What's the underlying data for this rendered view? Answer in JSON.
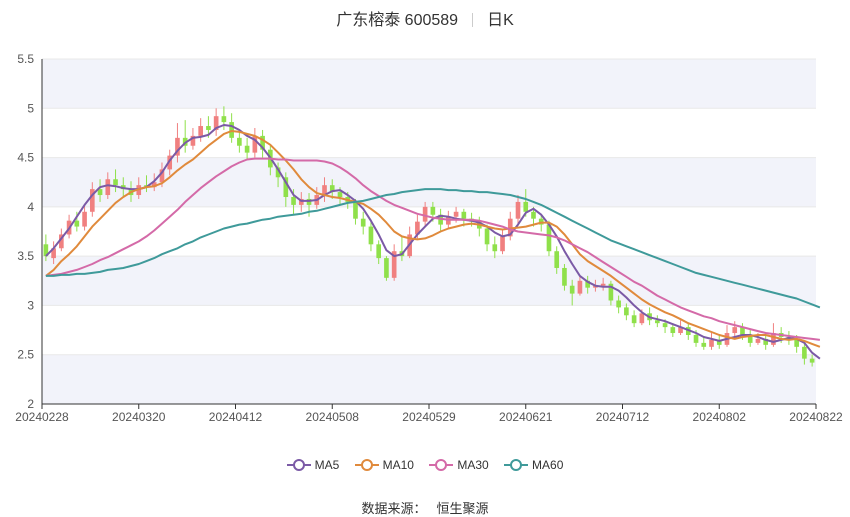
{
  "header": {
    "name": "广东榕泰 600589",
    "period": "日K"
  },
  "source": {
    "label": "数据来源：",
    "value": "恒生聚源"
  },
  "colors": {
    "up": "#f08080",
    "down": "#8fe04a",
    "ma5": "#7b5aa6",
    "ma10": "#e08a3c",
    "ma30": "#d46aa8",
    "ma60": "#3f9a9a",
    "grid": "#e8e8e8",
    "band": "#f2f3fa"
  },
  "chart_data": {
    "type": "candlestick",
    "title": "广东榕泰 600589",
    "period": "日K",
    "ylim": [
      2,
      5.5
    ],
    "yticks": [
      "2",
      "2.5",
      "3",
      "3.5",
      "4",
      "4.5",
      "5",
      "5.5"
    ],
    "xtick_labels": [
      "20240228",
      "20240320",
      "20240412",
      "20240508",
      "20240529",
      "20240621",
      "20240712",
      "20240802",
      "20240822"
    ],
    "legend_placement": "bottom-center",
    "grid": true,
    "candles": [
      [
        3.62,
        3.5,
        3.72,
        3.45
      ],
      [
        3.48,
        3.58,
        3.65,
        3.42
      ],
      [
        3.58,
        3.72,
        3.78,
        3.55
      ],
      [
        3.72,
        3.86,
        3.92,
        3.68
      ],
      [
        3.86,
        3.8,
        3.95,
        3.75
      ],
      [
        3.8,
        3.95,
        4.02,
        3.76
      ],
      [
        3.95,
        4.18,
        4.25,
        3.9
      ],
      [
        4.18,
        4.12,
        4.28,
        4.05
      ],
      [
        4.12,
        4.28,
        4.35,
        4.08
      ],
      [
        4.28,
        4.22,
        4.38,
        4.15
      ],
      [
        4.22,
        4.18,
        4.3,
        4.1
      ],
      [
        4.18,
        4.12,
        4.26,
        4.05
      ],
      [
        4.12,
        4.22,
        4.3,
        4.08
      ],
      [
        4.22,
        4.2,
        4.32,
        4.15
      ],
      [
        4.2,
        4.25,
        4.34,
        4.16
      ],
      [
        4.25,
        4.38,
        4.45,
        4.2
      ],
      [
        4.38,
        4.52,
        4.58,
        4.32
      ],
      [
        4.52,
        4.7,
        4.85,
        4.45
      ],
      [
        4.7,
        4.62,
        4.88,
        4.55
      ],
      [
        4.62,
        4.72,
        4.8,
        4.58
      ],
      [
        4.72,
        4.82,
        4.9,
        4.66
      ],
      [
        4.82,
        4.78,
        4.92,
        4.7
      ],
      [
        4.78,
        4.92,
        5.0,
        4.72
      ],
      [
        4.92,
        4.86,
        5.02,
        4.78
      ],
      [
        4.86,
        4.7,
        4.95,
        4.65
      ],
      [
        4.7,
        4.62,
        4.78,
        4.55
      ],
      [
        4.62,
        4.55,
        4.7,
        4.48
      ],
      [
        4.55,
        4.72,
        4.8,
        4.5
      ],
      [
        4.72,
        4.58,
        4.78,
        4.5
      ],
      [
        4.58,
        4.4,
        4.62,
        4.32
      ],
      [
        4.4,
        4.3,
        4.45,
        4.2
      ],
      [
        4.3,
        4.1,
        4.35,
        4.0
      ],
      [
        4.1,
        4.02,
        4.18,
        3.92
      ],
      [
        4.02,
        4.08,
        4.15,
        3.95
      ],
      [
        4.08,
        4.02,
        4.14,
        3.9
      ],
      [
        4.02,
        4.12,
        4.2,
        3.98
      ],
      [
        4.12,
        4.22,
        4.3,
        4.05
      ],
      [
        4.22,
        4.15,
        4.28,
        4.08
      ],
      [
        4.15,
        4.1,
        4.2,
        4.02
      ],
      [
        4.1,
        4.05,
        4.15,
        3.98
      ],
      [
        4.05,
        3.88,
        4.08,
        3.82
      ],
      [
        3.88,
        3.8,
        3.95,
        3.72
      ],
      [
        3.8,
        3.62,
        3.85,
        3.55
      ],
      [
        3.62,
        3.48,
        3.66,
        3.42
      ],
      [
        3.48,
        3.28,
        3.5,
        3.25
      ],
      [
        3.28,
        3.55,
        3.62,
        3.25
      ],
      [
        3.55,
        3.5,
        3.7,
        3.45
      ],
      [
        3.5,
        3.72,
        3.8,
        3.48
      ],
      [
        3.72,
        3.85,
        3.92,
        3.68
      ],
      [
        3.85,
        4.0,
        4.05,
        3.8
      ],
      [
        4.0,
        3.92,
        4.05,
        3.85
      ],
      [
        3.92,
        3.82,
        3.98,
        3.75
      ],
      [
        3.82,
        3.9,
        3.96,
        3.78
      ],
      [
        3.9,
        3.95,
        4.0,
        3.84
      ],
      [
        3.95,
        3.88,
        3.98,
        3.8
      ],
      [
        3.88,
        3.85,
        3.94,
        3.8
      ],
      [
        3.85,
        3.78,
        3.9,
        3.7
      ],
      [
        3.78,
        3.62,
        3.82,
        3.55
      ],
      [
        3.62,
        3.55,
        3.7,
        3.48
      ],
      [
        3.55,
        3.7,
        3.78,
        3.52
      ],
      [
        3.7,
        3.88,
        3.95,
        3.66
      ],
      [
        3.88,
        4.05,
        4.12,
        3.82
      ],
      [
        4.05,
        3.95,
        4.18,
        3.9
      ],
      [
        3.95,
        3.88,
        4.0,
        3.8
      ],
      [
        3.88,
        3.82,
        3.92,
        3.75
      ],
      [
        3.82,
        3.55,
        3.86,
        3.5
      ],
      [
        3.55,
        3.38,
        3.6,
        3.32
      ],
      [
        3.38,
        3.2,
        3.42,
        3.15
      ],
      [
        3.2,
        3.12,
        3.26,
        3.0
      ],
      [
        3.12,
        3.25,
        3.3,
        3.1
      ],
      [
        3.25,
        3.18,
        3.3,
        3.12
      ],
      [
        3.18,
        3.2,
        3.26,
        3.14
      ],
      [
        3.2,
        3.22,
        3.28,
        3.15
      ],
      [
        3.22,
        3.05,
        3.25,
        3.0
      ],
      [
        3.05,
        2.98,
        3.1,
        2.92
      ],
      [
        2.98,
        2.9,
        3.02,
        2.85
      ],
      [
        2.9,
        2.82,
        2.95,
        2.78
      ],
      [
        2.82,
        2.92,
        2.96,
        2.8
      ],
      [
        2.92,
        2.85,
        2.98,
        2.8
      ],
      [
        2.85,
        2.82,
        2.9,
        2.78
      ],
      [
        2.82,
        2.78,
        2.86,
        2.72
      ],
      [
        2.78,
        2.72,
        2.82,
        2.68
      ],
      [
        2.72,
        2.78,
        2.85,
        2.7
      ],
      [
        2.78,
        2.7,
        2.82,
        2.65
      ],
      [
        2.7,
        2.62,
        2.75,
        2.58
      ],
      [
        2.62,
        2.58,
        2.68,
        2.55
      ],
      [
        2.58,
        2.65,
        2.72,
        2.55
      ],
      [
        2.65,
        2.6,
        2.7,
        2.56
      ],
      [
        2.6,
        2.72,
        2.8,
        2.58
      ],
      [
        2.72,
        2.78,
        2.84,
        2.68
      ],
      [
        2.78,
        2.7,
        2.82,
        2.65
      ],
      [
        2.7,
        2.62,
        2.75,
        2.58
      ],
      [
        2.62,
        2.66,
        2.72,
        2.6
      ],
      [
        2.66,
        2.6,
        2.7,
        2.55
      ],
      [
        2.6,
        2.72,
        2.82,
        2.58
      ],
      [
        2.72,
        2.68,
        2.78,
        2.62
      ],
      [
        2.68,
        2.65,
        2.74,
        2.6
      ],
      [
        2.65,
        2.58,
        2.7,
        2.52
      ],
      [
        2.58,
        2.46,
        2.62,
        2.4
      ],
      [
        2.46,
        2.42,
        2.5,
        2.38
      ]
    ],
    "series": [
      {
        "name": "MA5",
        "color": "#7b5aa6",
        "values": [
          3.5,
          3.58,
          3.68,
          3.78,
          3.9,
          4.02,
          4.12,
          4.2,
          4.22,
          4.21,
          4.19,
          4.18,
          4.18,
          4.2,
          4.26,
          4.35,
          4.47,
          4.57,
          4.65,
          4.7,
          4.71,
          4.73,
          4.8,
          4.83,
          4.82,
          4.78,
          4.72,
          4.68,
          4.6,
          4.5,
          4.38,
          4.25,
          4.12,
          4.06,
          4.06,
          4.07,
          4.12,
          4.16,
          4.17,
          4.12,
          4.06,
          3.98,
          3.86,
          3.72,
          3.56,
          3.5,
          3.52,
          3.62,
          3.72,
          3.8,
          3.88,
          3.91,
          3.9,
          3.88,
          3.87,
          3.86,
          3.84,
          3.8,
          3.74,
          3.7,
          3.72,
          3.82,
          3.94,
          3.98,
          3.92,
          3.82,
          3.7,
          3.55,
          3.42,
          3.3,
          3.24,
          3.2,
          3.19,
          3.19,
          3.15,
          3.08,
          3.0,
          2.93,
          2.88,
          2.86,
          2.84,
          2.81,
          2.78,
          2.75,
          2.72,
          2.68,
          2.66,
          2.64,
          2.66,
          2.68,
          2.7,
          2.7,
          2.68,
          2.65,
          2.63,
          2.65,
          2.67,
          2.66,
          2.62,
          2.52,
          2.46
        ]
      },
      {
        "name": "MA10",
        "color": "#e08a3c",
        "values": [
          3.3,
          3.36,
          3.45,
          3.52,
          3.6,
          3.7,
          3.8,
          3.88,
          3.96,
          4.04,
          4.1,
          4.15,
          4.18,
          4.2,
          4.21,
          4.24,
          4.3,
          4.37,
          4.43,
          4.48,
          4.55,
          4.62,
          4.68,
          4.74,
          4.77,
          4.76,
          4.74,
          4.72,
          4.68,
          4.63,
          4.55,
          4.47,
          4.38,
          4.28,
          4.2,
          4.14,
          4.12,
          4.1,
          4.09,
          4.07,
          4.05,
          4.03,
          3.98,
          3.92,
          3.84,
          3.75,
          3.7,
          3.68,
          3.67,
          3.68,
          3.71,
          3.75,
          3.78,
          3.8,
          3.82,
          3.83,
          3.82,
          3.8,
          3.78,
          3.77,
          3.78,
          3.79,
          3.8,
          3.82,
          3.84,
          3.84,
          3.8,
          3.72,
          3.62,
          3.52,
          3.45,
          3.4,
          3.35,
          3.3,
          3.24,
          3.18,
          3.12,
          3.06,
          3.01,
          2.97,
          2.93,
          2.9,
          2.86,
          2.82,
          2.79,
          2.76,
          2.73,
          2.7,
          2.68,
          2.66,
          2.68,
          2.69,
          2.7,
          2.7,
          2.68,
          2.66,
          2.65,
          2.66,
          2.64,
          2.61,
          2.58
        ]
      },
      {
        "name": "MA30",
        "color": "#d46aa8",
        "values": [
          3.3,
          3.31,
          3.32,
          3.34,
          3.36,
          3.39,
          3.42,
          3.46,
          3.49,
          3.53,
          3.57,
          3.61,
          3.65,
          3.7,
          3.76,
          3.83,
          3.9,
          3.97,
          4.05,
          4.12,
          4.19,
          4.25,
          4.31,
          4.36,
          4.41,
          4.45,
          4.48,
          4.49,
          4.49,
          4.49,
          4.48,
          4.48,
          4.47,
          4.47,
          4.47,
          4.47,
          4.46,
          4.44,
          4.4,
          4.35,
          4.29,
          4.22,
          4.16,
          4.11,
          4.06,
          4.02,
          3.99,
          3.96,
          3.93,
          3.91,
          3.89,
          3.88,
          3.87,
          3.87,
          3.87,
          3.87,
          3.86,
          3.84,
          3.82,
          3.8,
          3.77,
          3.75,
          3.74,
          3.73,
          3.72,
          3.71,
          3.69,
          3.66,
          3.62,
          3.58,
          3.54,
          3.49,
          3.44,
          3.39,
          3.34,
          3.29,
          3.24,
          3.2,
          3.15,
          3.1,
          3.06,
          3.02,
          2.98,
          2.95,
          2.92,
          2.89,
          2.87,
          2.84,
          2.82,
          2.8,
          2.78,
          2.76,
          2.74,
          2.72,
          2.71,
          2.7,
          2.69,
          2.68,
          2.67,
          2.66,
          2.65
        ]
      },
      {
        "name": "MA60",
        "color": "#3f9a9a",
        "values": [
          3.3,
          3.3,
          3.31,
          3.31,
          3.32,
          3.32,
          3.33,
          3.34,
          3.36,
          3.37,
          3.38,
          3.4,
          3.42,
          3.45,
          3.48,
          3.52,
          3.55,
          3.58,
          3.62,
          3.65,
          3.69,
          3.72,
          3.75,
          3.78,
          3.8,
          3.82,
          3.83,
          3.85,
          3.87,
          3.88,
          3.9,
          3.91,
          3.92,
          3.93,
          3.95,
          3.96,
          3.98,
          4.0,
          4.02,
          4.04,
          4.05,
          4.06,
          4.08,
          4.1,
          4.12,
          4.13,
          4.15,
          4.16,
          4.17,
          4.18,
          4.18,
          4.18,
          4.17,
          4.17,
          4.16,
          4.16,
          4.15,
          4.15,
          4.14,
          4.13,
          4.12,
          4.1,
          4.08,
          4.05,
          4.02,
          3.98,
          3.94,
          3.9,
          3.86,
          3.82,
          3.78,
          3.74,
          3.7,
          3.66,
          3.63,
          3.6,
          3.57,
          3.54,
          3.51,
          3.48,
          3.45,
          3.42,
          3.39,
          3.36,
          3.33,
          3.31,
          3.29,
          3.27,
          3.25,
          3.23,
          3.21,
          3.19,
          3.17,
          3.15,
          3.13,
          3.11,
          3.09,
          3.07,
          3.04,
          3.01,
          2.98
        ]
      }
    ]
  }
}
